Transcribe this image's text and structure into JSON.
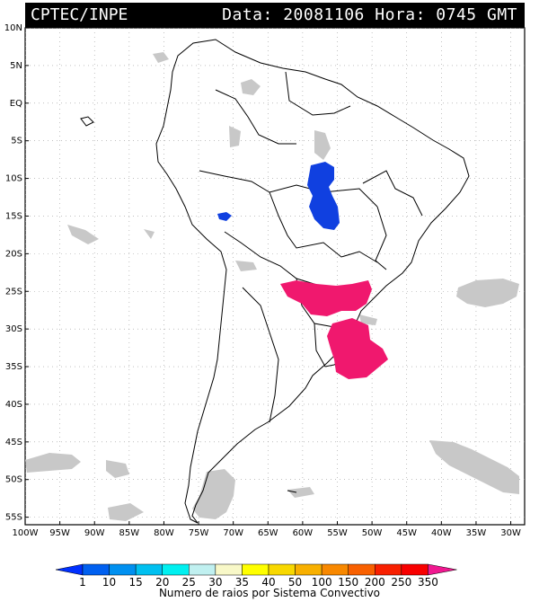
{
  "header": {
    "source": "CPTEC/INPE",
    "date_label": "Data:",
    "date_value": "20081106",
    "time_label": "Hora:",
    "time_value": "0745",
    "time_zone": "GMT"
  },
  "map": {
    "lat_labels": [
      "10N",
      "5N",
      "EQ",
      "5S",
      "10S",
      "15S",
      "20S",
      "25S",
      "30S",
      "35S",
      "40S",
      "45S",
      "50S",
      "55S"
    ],
    "lon_labels": [
      "100W",
      "95W",
      "90W",
      "85W",
      "80W",
      "75W",
      "70W",
      "65W",
      "60W",
      "55W",
      "50W",
      "45W",
      "40W",
      "35W",
      "30W"
    ],
    "lat_range": [
      10,
      -56
    ],
    "lon_range": [
      -100,
      -28
    ],
    "colors": {
      "cloud": "#c8c8c8",
      "border": "#000000",
      "grid": "#9a9a9a",
      "blue_class": "#1040e0",
      "pink_class": "#f0186e"
    }
  },
  "legend": {
    "ticks": [
      "1",
      "10",
      "15",
      "20",
      "25",
      "30",
      "35",
      "40",
      "50",
      "100",
      "150",
      "200",
      "250",
      "350"
    ],
    "colors": [
      "#0030ff",
      "#0060f0",
      "#0090f0",
      "#00c0f0",
      "#00f0f0",
      "#c0f0f0",
      "#f8f8c8",
      "#ffff00",
      "#f8d800",
      "#f8b000",
      "#f88800",
      "#f86000",
      "#f82000",
      "#f80000",
      "#f01890"
    ],
    "title": "Numero de raios por Sistema Convectivo"
  }
}
